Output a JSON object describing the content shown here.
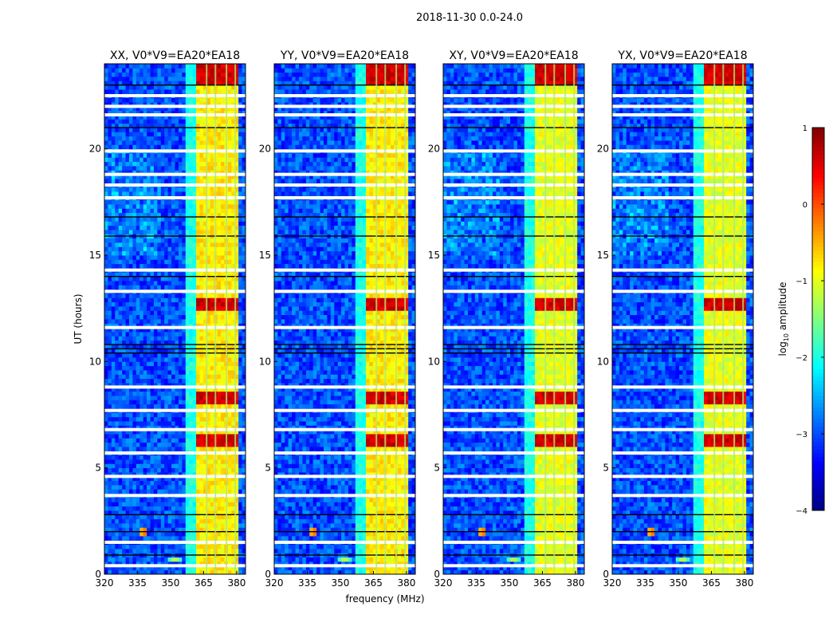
{
  "chart_data": {
    "type": "heatmap",
    "suptitle": "2018-11-30 0.0-24.0",
    "xlabel": "frequency (MHz)",
    "ylabel": "UT (hours)",
    "xlim": [
      320,
      384
    ],
    "ylim": [
      0,
      24
    ],
    "xticks": [
      320,
      335,
      350,
      365,
      380
    ],
    "yticks": [
      0,
      5,
      10,
      15,
      20
    ],
    "colorbar": {
      "label": "log10 amplitude",
      "label_main": "log",
      "label_sub": "10",
      "label_rest": " amplitude",
      "range": [
        -4,
        1
      ],
      "ticks": [
        -4,
        -3,
        -2,
        -1,
        0,
        1
      ],
      "colormap": "jet"
    },
    "background_log_amplitude": -3.0,
    "rfi_band_mhz": [
      361,
      380
    ],
    "rfi_band_log_amplitude": -0.8,
    "strong_rfi_times_hours": [
      [
        8.0,
        8.6
      ],
      [
        23.0,
        23.9
      ],
      [
        12.4,
        13.0
      ],
      [
        6.0,
        6.5
      ]
    ],
    "flagged_times_hours": [
      0.4,
      1.5,
      3.7,
      4.6,
      5.7,
      6.8,
      7.7,
      8.8,
      11.6,
      13.3,
      14.3,
      17.7,
      18.3,
      18.8,
      19.9,
      21.6,
      22.0,
      22.5
    ],
    "dark_times_hours": [
      0.9,
      2.0,
      2.8,
      10.4,
      10.6,
      10.8,
      14.0,
      15.9,
      16.8,
      21.0,
      23.0
    ],
    "transient_events": [
      {
        "time_hours": 2.0,
        "freq_mhz": 338,
        "log_amplitude": 0.5
      },
      {
        "time_hours": 0.7,
        "freq_mhz": 352,
        "log_amplitude": -1.0
      }
    ],
    "panels": [
      {
        "title": "XX, V0*V9=EA20*EA18"
      },
      {
        "title": "YY, V0*V9=EA20*EA18"
      },
      {
        "title": "XY, V0*V9=EA20*EA18"
      },
      {
        "title": "YX, V0*V9=EA20*EA18"
      }
    ]
  }
}
